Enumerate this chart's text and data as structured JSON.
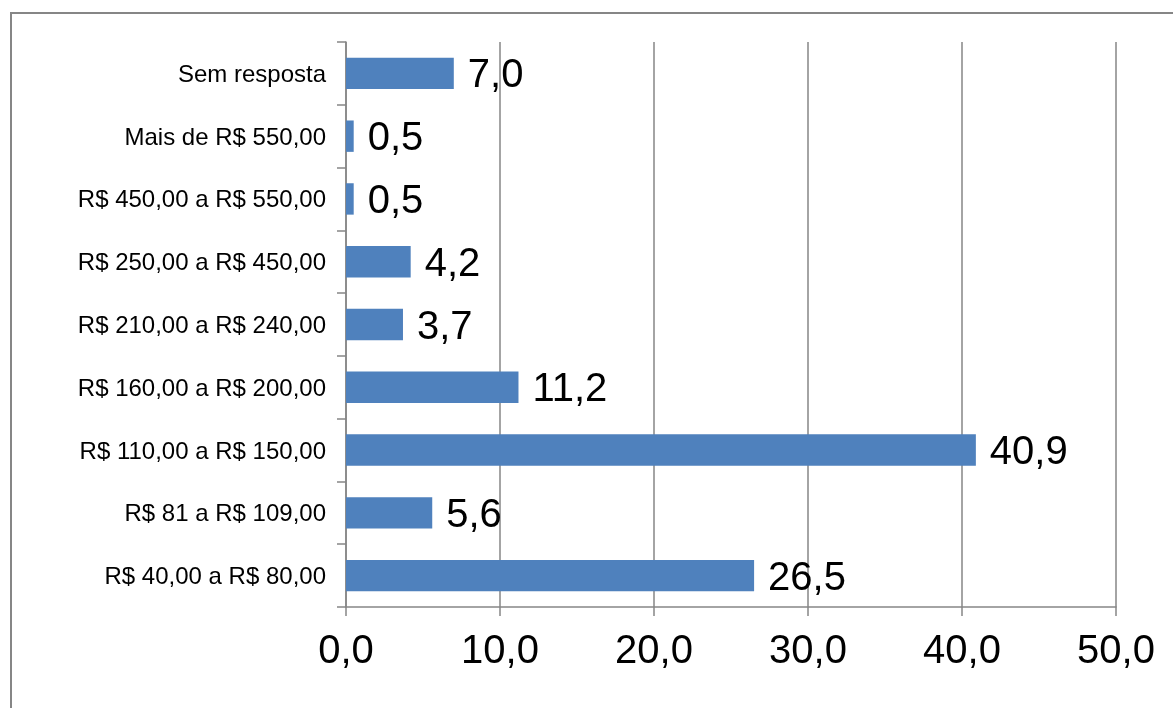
{
  "chart_data": {
    "type": "bar",
    "orientation": "horizontal",
    "categories": [
      "Sem resposta",
      "Mais de R$ 550,00",
      "R$ 450,00 a R$ 550,00",
      "R$ 250,00 a R$ 450,00",
      "R$ 210,00 a R$ 240,00",
      "R$ 160,00 a R$ 200,00",
      "R$ 110,00 a R$ 150,00",
      "R$ 81 a R$ 109,00",
      "R$ 40,00 a R$ 80,00"
    ],
    "values": [
      7.0,
      0.5,
      0.5,
      4.2,
      3.7,
      11.2,
      40.9,
      5.6,
      26.5
    ],
    "value_labels": [
      "7,0",
      "0,5",
      "0,5",
      "4,2",
      "3,7",
      "11,2",
      "40,9",
      "5,6",
      "26,5"
    ],
    "color": "#4f81bd",
    "xlim": [
      0,
      50
    ],
    "xticks": [
      {
        "value": 0,
        "label": "0,0"
      },
      {
        "value": 10,
        "label": "10,0"
      },
      {
        "value": 20,
        "label": "20,0"
      },
      {
        "value": 30,
        "label": "30,0"
      },
      {
        "value": 40,
        "label": "40,0"
      },
      {
        "value": 50,
        "label": "50,0"
      }
    ],
    "grid": "x"
  }
}
